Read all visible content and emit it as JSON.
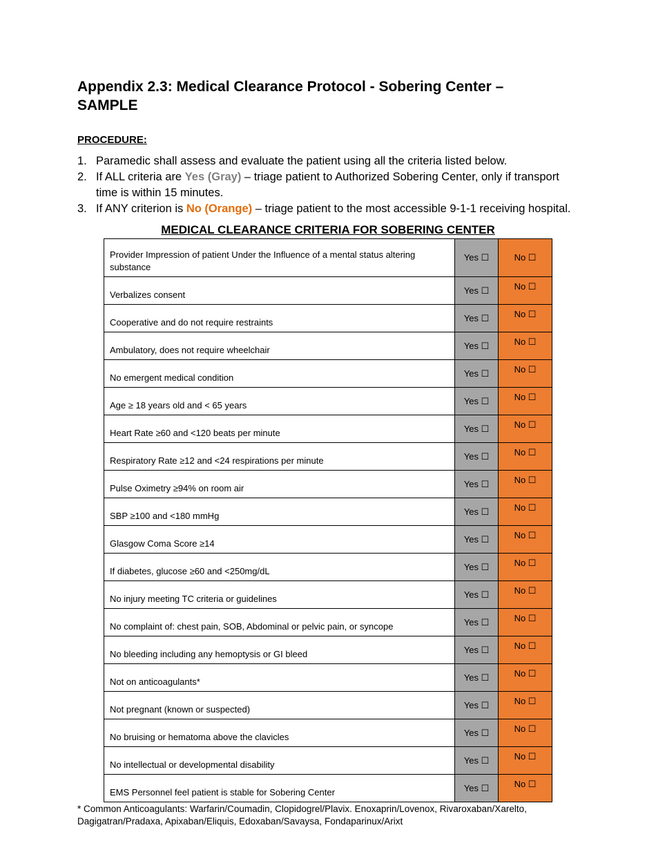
{
  "title": "Appendix 2.3: Medical Clearance Protocol - Sobering Center – SAMPLE",
  "procedure_heading": "PROCEDURE:",
  "steps": [
    {
      "num": "1.",
      "before": "Paramedic shall assess and evaluate the patient using all the criteria listed below.",
      "highlight": "",
      "after": ""
    },
    {
      "num": "2.",
      "before": "If ALL criteria are ",
      "highlight": "Yes (Gray)",
      "after": " – triage patient to Authorized Sobering Center, only if transport time is within 15 minutes."
    },
    {
      "num": "3.",
      "before": "If ANY criterion is ",
      "highlight": "No (Orange)",
      "after": " – triage patient to the most accessible 9-1-1 receiving hospital."
    }
  ],
  "table_title": "MEDICAL CLEARANCE CRITERIA FOR SOBERING CENTER",
  "yes_label": "Yes ☐",
  "no_label": "No ☐",
  "colors": {
    "yes": "#a6a6a6",
    "no": "#ed7d31"
  },
  "criteria": [
    "Provider Impression of patient Under the Influence of a mental status altering substance",
    "Verbalizes consent",
    "Cooperative and do not require restraints",
    "Ambulatory, does not require wheelchair",
    "No emergent medical condition",
    "Age ≥ 18 years old and < 65 years",
    "Heart Rate ≥60 and <120 beats per minute",
    "Respiratory Rate ≥12 and <24 respirations per minute",
    "Pulse Oximetry ≥94% on room air",
    "SBP ≥100 and <180 mmHg",
    "Glasgow Coma Score ≥14",
    "If diabetes, glucose ≥60 and <250mg/dL",
    "No injury meeting TC criteria or guidelines",
    "No complaint of: chest pain, SOB, Abdominal or pelvic pain, or syncope",
    "No bleeding including any hemoptysis or GI bleed",
    "Not on anticoagulants*",
    "Not pregnant (known or suspected)",
    "No bruising or hematoma above the clavicles",
    "No intellectual or developmental disability",
    "EMS Personnel feel patient is stable for Sobering Center"
  ],
  "footnote": "* Common Anticoagulants: Warfarin/Coumadin, Clopidogrel/Plavix. Enoxaprin/Lovenox, Rivaroxaban/Xarelto, Dagigatran/Pradaxa, Apixaban/Eliquis, Edoxaban/Savaysa, Fondaparinux/Arixt"
}
